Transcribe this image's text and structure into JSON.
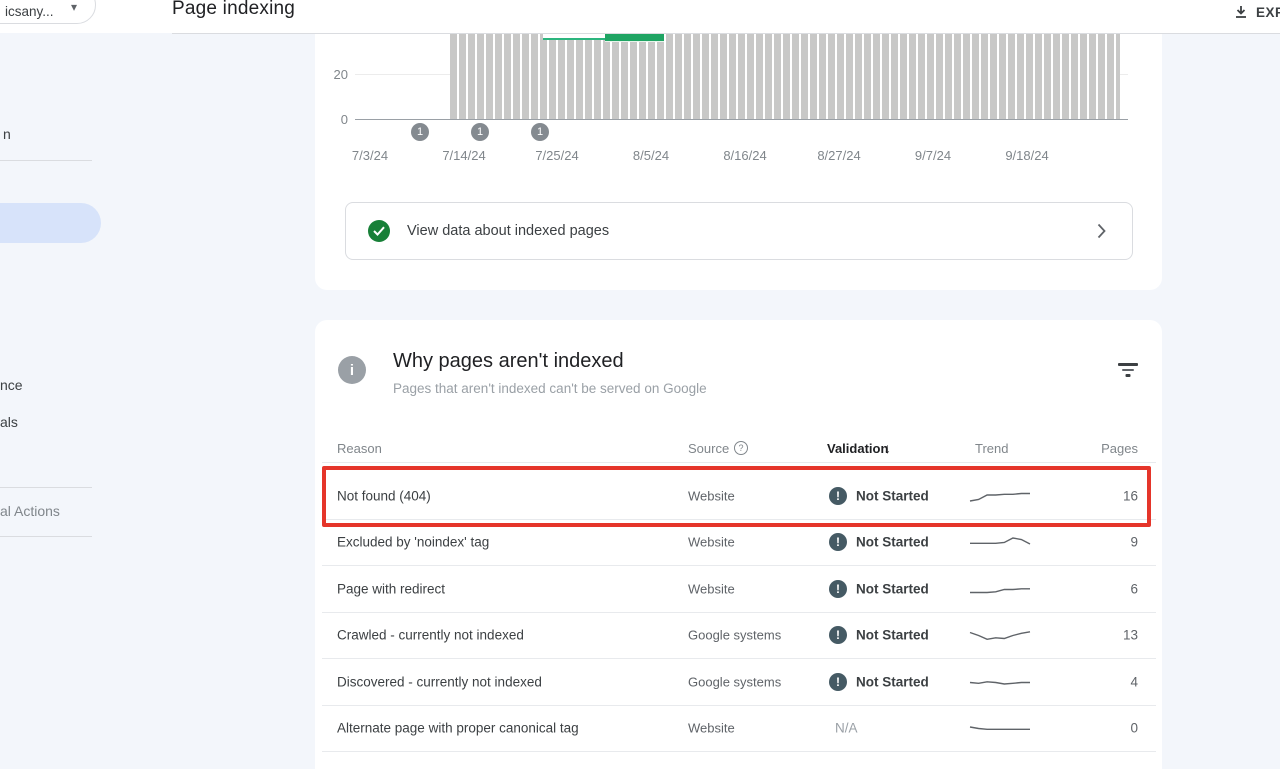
{
  "topbar": {
    "property_label": "icsany...",
    "title": "Page indexing",
    "export_label": "EXPORT"
  },
  "icons": {
    "caret": "▾",
    "info": "i",
    "help": "?",
    "error": "!",
    "sort_desc": "↓"
  },
  "sidebar": {
    "fragments": [
      {
        "label": "n"
      },
      {
        "label": "nce"
      },
      {
        "label": "als"
      },
      {
        "label": "al Actions"
      }
    ]
  },
  "chart_data": {
    "type": "bar",
    "title": "",
    "y_ticks": [
      "20",
      "0"
    ],
    "x_labels": [
      "7/3/24",
      "7/14/24",
      "7/25/24",
      "8/5/24",
      "8/16/24",
      "8/27/24",
      "9/7/24",
      "9/18/24"
    ],
    "annotation_markers": [
      "1",
      "1",
      "1"
    ],
    "note_visible_range": "daily bars from ~7/14/24 to ~9/25/24, values exceed visible top of chart",
    "colors": {
      "not_indexed_bar": "#c8c8c7",
      "indexed_segment": "#1fa463"
    }
  },
  "indexed_panel": {
    "label": "View data about indexed pages"
  },
  "not_indexed_panel": {
    "title": "Why pages aren't indexed",
    "subtitle": "Pages that aren't indexed can't be served on Google",
    "table": {
      "headers": {
        "reason": "Reason",
        "source": "Source",
        "validation": "Validation",
        "trend": "Trend",
        "pages": "Pages"
      },
      "rows": [
        {
          "reason": "Not found (404)",
          "source": "Website",
          "validation": "Not Started",
          "pages": "16",
          "highlighted": true,
          "trend": [
            8,
            7,
            4,
            4,
            3.5,
            3.5,
            3,
            3
          ]
        },
        {
          "reason": "Excluded by 'noindex' tag",
          "source": "Website",
          "validation": "Not Started",
          "pages": "9",
          "highlighted": false,
          "trend": [
            5.5,
            5.5,
            5.5,
            5.5,
            5,
            2,
            3,
            6
          ]
        },
        {
          "reason": "Page with redirect",
          "source": "Website",
          "validation": "Not Started",
          "pages": "6",
          "highlighted": false,
          "trend": [
            7,
            7,
            7,
            6.5,
            5,
            5,
            4.5,
            4.5
          ]
        },
        {
          "reason": "Crawled - currently not indexed",
          "source": "Google systems",
          "validation": "Not Started",
          "pages": "13",
          "highlighted": false,
          "trend": [
            3,
            5,
            7.5,
            6.5,
            7,
            5,
            3.5,
            2.5
          ]
        },
        {
          "reason": "Discovered - currently not indexed",
          "source": "Google systems",
          "validation": "Not Started",
          "pages": "4",
          "highlighted": false,
          "trend": [
            5,
            5.5,
            4.5,
            5,
            6,
            5.5,
            5,
            5
          ]
        },
        {
          "reason": "Alternate page with proper canonical tag",
          "source": "Website",
          "validation": "N/A",
          "pages": "0",
          "highlighted": false,
          "trend": [
            4,
            5,
            5.5,
            5.5,
            5.5,
            5.5,
            5.5,
            5.5
          ]
        }
      ]
    }
  }
}
